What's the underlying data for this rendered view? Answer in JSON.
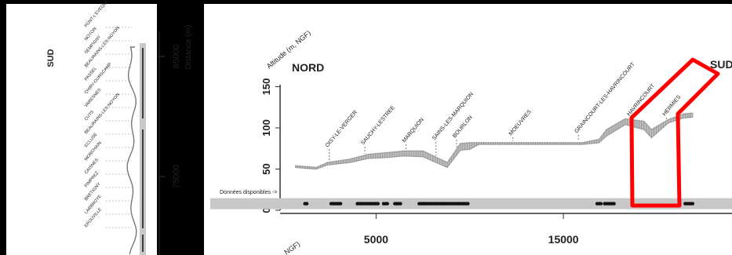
{
  "left_panel": {
    "direction_label": "SUD",
    "distance_label": "Distance (m)",
    "distance_ticks": [
      "85000",
      "75000"
    ],
    "stations": [
      "PONT-L'EVEQUE",
      "NOYON",
      "SEMPIGNY",
      "BEAURAINS-LES-NOYON",
      "PASSEL",
      "CHIRY-OURSCAMP",
      "VARESNES",
      "CUTS",
      "BEAURAINS-LES-NOYON",
      "ECLUSE",
      "MORCHAIN",
      "CAISNES",
      "PIMPREZ",
      "BRETIGNY",
      "LARBROYE",
      "EPOUVILLE"
    ]
  },
  "main_panel": {
    "y_axis_title": "Altitude (m, NGF)",
    "left_direction": "NORD",
    "right_direction": "SUD",
    "available_data_label": "Données disponibles ->",
    "bottom_partial_label": "NGF)"
  },
  "colors": {
    "background": "#000000",
    "panel": "#ffffff",
    "band": "#c8c8c8",
    "profile": "#9a9a9a",
    "points": "#111111",
    "highlight": "#ff0000"
  },
  "chart_data": {
    "type": "line",
    "xlabel": "",
    "ylabel": "Altitude (m, NGF)",
    "xlim": [
      0,
      24000
    ],
    "ylim": [
      0,
      160
    ],
    "x_ticks": [
      5000,
      15000
    ],
    "y_ticks": [
      0,
      50,
      100,
      150
    ],
    "grid": false,
    "series": [
      {
        "type": "area_band",
        "x": [
          700,
          1800,
          2400,
          3600,
          4600,
          5600,
          6500,
          7500,
          8800,
          9500,
          10000,
          10500,
          12000,
          13500,
          15000,
          16000,
          16900,
          17300,
          18300,
          19300,
          19700,
          20600,
          21400,
          21900
        ],
        "y_low": [
          52,
          50,
          55,
          58,
          63,
          64,
          66,
          65,
          52,
          73,
          74,
          80,
          80,
          80,
          80,
          80,
          82,
          90,
          104,
          98,
          88,
          106,
          112,
          113
        ],
        "y_high": [
          54,
          52,
          58,
          62,
          68,
          70,
          72,
          72,
          58,
          81,
          82,
          82,
          82,
          82,
          82,
          82,
          86,
          98,
          111,
          108,
          98,
          110,
          117,
          118
        ]
      }
    ],
    "stations": [
      {
        "name": "OISY-LE-VERGER",
        "x": 2500
      },
      {
        "name": "SAUCHY-LESTREE",
        "x": 4400
      },
      {
        "name": "MARQUION",
        "x": 6600
      },
      {
        "name": "SAINS-LES-MARQUION",
        "x": 8200
      },
      {
        "name": "BOURLON",
        "x": 9300
      },
      {
        "name": "MOEUVRES",
        "x": 12300
      },
      {
        "name": "GRAINCOURT-LES-HAVRINCOURT",
        "x": 15800
      },
      {
        "name": "HAVRINCOURT",
        "x": 18600
      },
      {
        "name": "HERMIES",
        "x": 20500
      }
    ],
    "available_data_points": [
      [
        1200,
        1300
      ],
      [
        2600,
        2700,
        2800,
        2900,
        3000,
        3100
      ],
      [
        4000,
        4100,
        4200,
        4300,
        4400,
        4500,
        4600,
        4700,
        4800,
        4900,
        5000,
        5100
      ],
      [
        5400,
        5500,
        5600
      ],
      [
        6000,
        6100,
        6200,
        6300
      ],
      [
        7300,
        7400,
        7500,
        7600,
        7700,
        7800,
        7900,
        8000,
        8100,
        8200,
        8300,
        8400,
        8500,
        8600,
        8700,
        8800,
        8900,
        9000,
        9100,
        9200,
        9300,
        9400,
        9500,
        9600,
        9700,
        9800,
        9900
      ],
      [
        16800,
        16900,
        17000,
        17200,
        17300,
        17400,
        17500,
        17600,
        17700
      ],
      [
        21500,
        21600,
        21700,
        21800,
        21900
      ]
    ],
    "available_data_y": 8
  }
}
